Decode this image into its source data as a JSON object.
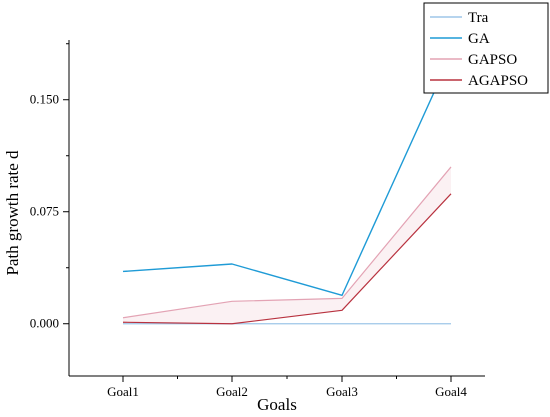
{
  "chart_data": {
    "type": "line",
    "title": "",
    "xlabel": "Goals",
    "ylabel": "Path growth rate d",
    "categories": [
      "Goal1",
      "Goal2",
      "Goal3",
      "Goal4"
    ],
    "ylim": [
      -0.035,
      0.19
    ],
    "yticks": [
      0.0,
      0.075,
      0.15
    ],
    "ytick_labels": [
      "0.000",
      "0.075",
      "0.150"
    ],
    "grid": false,
    "legend_position": "top-right",
    "series": [
      {
        "name": "Tra",
        "color": "#9ec6e8",
        "values": [
          0.0,
          0.0,
          0.0,
          0.0
        ]
      },
      {
        "name": "GA",
        "color": "#1f9bd6",
        "values": [
          0.035,
          0.04,
          0.019,
          0.18
        ]
      },
      {
        "name": "GAPSO",
        "color": "#e3a3b4",
        "values": [
          0.004,
          0.015,
          0.017,
          0.105
        ]
      },
      {
        "name": "AGAPSO",
        "color": "#b8323f",
        "values": [
          0.001,
          0.0,
          0.009,
          0.087
        ]
      }
    ]
  }
}
